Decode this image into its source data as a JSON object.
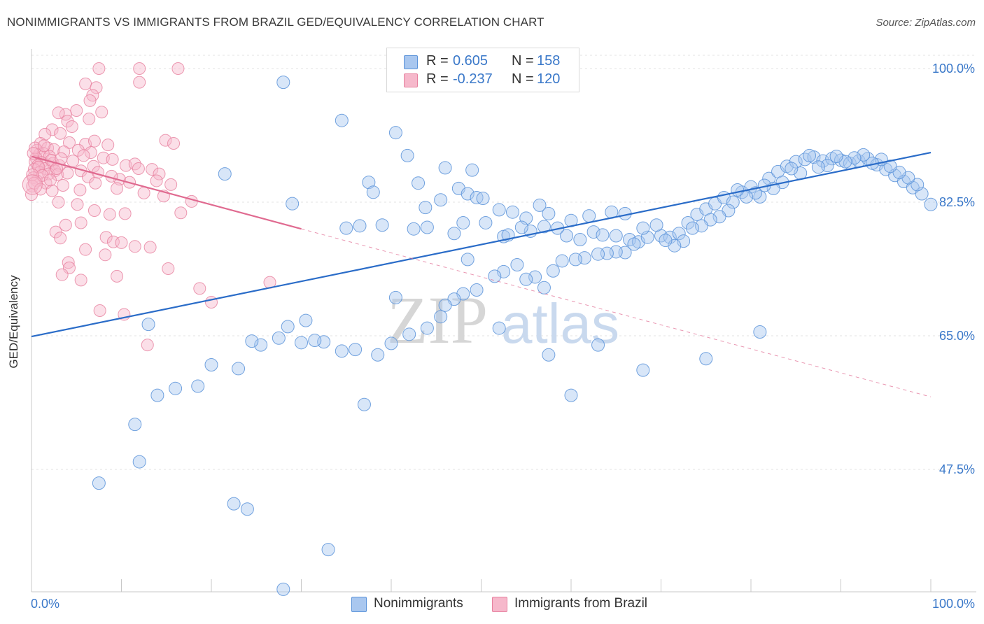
{
  "header": {
    "title": "NONIMMIGRANTS VS IMMIGRANTS FROM BRAZIL GED/EQUIVALENCY CORRELATION CHART",
    "source": "Source: ZipAtlas.com"
  },
  "colors": {
    "blue_fill": "#a9c7ef",
    "blue_stroke": "#5b93d9",
    "blue_line": "#2a6cc8",
    "pink_fill": "#f6b8cb",
    "pink_stroke": "#e7819f",
    "pink_line": "#e06a90",
    "axis_label": "#3a78c9",
    "grid": "#e3e3e3"
  },
  "legend": {
    "rows": [
      {
        "r_label": "R =",
        "r_value": "0.605",
        "n_label": "N =",
        "n_value": "158"
      },
      {
        "r_label": "R =",
        "r_value": "-0.237",
        "n_label": "N =",
        "n_value": "120"
      }
    ]
  },
  "bottom_legend": {
    "items": [
      {
        "label": "Nonimmigrants"
      },
      {
        "label": "Immigrants from Brazil"
      }
    ]
  },
  "watermark": {
    "zip": "ZIP",
    "atlas": "atlas"
  },
  "chart_data": {
    "type": "scatter",
    "title": "NONIMMIGRANTS VS IMMIGRANTS FROM BRAZIL GED/EQUIVALENCY CORRELATION CHART",
    "xlabel": "",
    "ylabel": "GED/Equivalency",
    "xlim": [
      0,
      100
    ],
    "ylim": [
      29,
      100
    ],
    "x_tick_labels": [
      "0.0%",
      "100.0%"
    ],
    "y_ticks": [
      {
        "value": 100.0,
        "label": "100.0%"
      },
      {
        "value": 82.5,
        "label": "82.5%"
      },
      {
        "value": 65.0,
        "label": "65.0%"
      },
      {
        "value": 47.5,
        "label": "47.5%"
      }
    ],
    "grid": true,
    "legend_position": "top-center",
    "series": [
      {
        "name": "Nonimmigrants",
        "r": 0.605,
        "n": 158,
        "trend": {
          "x": [
            0,
            100
          ],
          "y": [
            64.9,
            89.0
          ],
          "style": "solid"
        },
        "points": [
          [
            28.0,
            98.2
          ],
          [
            34.5,
            93.2
          ],
          [
            40.5,
            91.6
          ],
          [
            41.8,
            88.6
          ],
          [
            46.0,
            87.0
          ],
          [
            49.0,
            86.7
          ],
          [
            47.5,
            84.3
          ],
          [
            37.5,
            85.1
          ],
          [
            43.0,
            85.0
          ],
          [
            38.0,
            83.8
          ],
          [
            29.0,
            82.3
          ],
          [
            21.5,
            86.2
          ],
          [
            48.5,
            83.6
          ],
          [
            45.5,
            82.8
          ],
          [
            49.5,
            83.1
          ],
          [
            43.8,
            81.8
          ],
          [
            50.2,
            83.0
          ],
          [
            52.0,
            81.5
          ],
          [
            53.5,
            81.2
          ],
          [
            56.5,
            82.1
          ],
          [
            57.5,
            81.0
          ],
          [
            62.0,
            80.7
          ],
          [
            64.5,
            81.2
          ],
          [
            66.0,
            81.0
          ],
          [
            60.0,
            80.1
          ],
          [
            55.0,
            80.4
          ],
          [
            48.0,
            79.8
          ],
          [
            42.5,
            79.0
          ],
          [
            44.0,
            79.2
          ],
          [
            39.0,
            79.5
          ],
          [
            36.5,
            79.4
          ],
          [
            35.0,
            79.1
          ],
          [
            57.0,
            79.3
          ],
          [
            58.5,
            79.1
          ],
          [
            47.0,
            78.4
          ],
          [
            55.5,
            78.7
          ],
          [
            50.5,
            79.8
          ],
          [
            52.5,
            78.0
          ],
          [
            53.0,
            78.2
          ],
          [
            54.5,
            79.2
          ],
          [
            59.5,
            78.1
          ],
          [
            61.0,
            77.6
          ],
          [
            62.5,
            78.6
          ],
          [
            63.5,
            78.2
          ],
          [
            65.0,
            78.1
          ],
          [
            66.5,
            77.6
          ],
          [
            67.5,
            77.3
          ],
          [
            68.5,
            77.9
          ],
          [
            70.0,
            78.1
          ],
          [
            71.0,
            77.9
          ],
          [
            72.0,
            78.4
          ],
          [
            73.0,
            79.8
          ],
          [
            74.0,
            80.9
          ],
          [
            75.0,
            81.6
          ],
          [
            76.0,
            82.3
          ],
          [
            77.0,
            83.1
          ],
          [
            78.0,
            82.5
          ],
          [
            79.0,
            83.8
          ],
          [
            80.0,
            84.5
          ],
          [
            81.0,
            83.2
          ],
          [
            82.0,
            85.6
          ],
          [
            83.0,
            86.5
          ],
          [
            84.0,
            87.2
          ],
          [
            85.0,
            87.8
          ],
          [
            86.0,
            88.1
          ],
          [
            87.0,
            88.4
          ],
          [
            88.0,
            87.9
          ],
          [
            89.0,
            88.2
          ],
          [
            90.0,
            88.0
          ],
          [
            91.0,
            87.6
          ],
          [
            92.0,
            87.9
          ],
          [
            93.0,
            88.2
          ],
          [
            94.0,
            87.4
          ],
          [
            95.0,
            86.8
          ],
          [
            96.0,
            86.0
          ],
          [
            97.0,
            85.2
          ],
          [
            98.0,
            84.4
          ],
          [
            99.0,
            83.6
          ],
          [
            100.0,
            82.2
          ],
          [
            98.5,
            84.8
          ],
          [
            97.5,
            85.7
          ],
          [
            96.5,
            86.4
          ],
          [
            95.5,
            87.2
          ],
          [
            94.5,
            88.1
          ],
          [
            93.5,
            87.6
          ],
          [
            92.5,
            88.7
          ],
          [
            91.5,
            88.3
          ],
          [
            90.5,
            87.8
          ],
          [
            89.5,
            88.5
          ],
          [
            88.5,
            87.3
          ],
          [
            87.5,
            87.1
          ],
          [
            86.5,
            88.6
          ],
          [
            85.5,
            86.3
          ],
          [
            84.5,
            86.9
          ],
          [
            83.5,
            85.1
          ],
          [
            82.5,
            84.3
          ],
          [
            81.5,
            84.7
          ],
          [
            80.5,
            83.7
          ],
          [
            79.5,
            83.2
          ],
          [
            78.5,
            84.1
          ],
          [
            77.5,
            81.4
          ],
          [
            76.5,
            80.6
          ],
          [
            75.5,
            80.2
          ],
          [
            74.5,
            79.4
          ],
          [
            73.5,
            79.1
          ],
          [
            72.5,
            77.4
          ],
          [
            71.5,
            76.8
          ],
          [
            70.5,
            77.5
          ],
          [
            69.5,
            79.5
          ],
          [
            68.0,
            79.1
          ],
          [
            67.0,
            77.0
          ],
          [
            66.0,
            75.9
          ],
          [
            65.0,
            76.0
          ],
          [
            64.0,
            75.8
          ],
          [
            63.0,
            75.7
          ],
          [
            61.5,
            75.2
          ],
          [
            60.5,
            75.0
          ],
          [
            59.0,
            74.8
          ],
          [
            58.0,
            73.5
          ],
          [
            57.0,
            71.3
          ],
          [
            56.0,
            72.7
          ],
          [
            55.0,
            72.4
          ],
          [
            54.0,
            74.3
          ],
          [
            52.5,
            73.4
          ],
          [
            51.5,
            72.8
          ],
          [
            49.5,
            71.0
          ],
          [
            48.0,
            70.5
          ],
          [
            47.0,
            69.8
          ],
          [
            46.0,
            69.0
          ],
          [
            45.5,
            67.5
          ],
          [
            44.0,
            66.0
          ],
          [
            42.0,
            65.2
          ],
          [
            40.0,
            64.0
          ],
          [
            38.5,
            62.5
          ],
          [
            36.0,
            63.2
          ],
          [
            34.5,
            63.0
          ],
          [
            32.5,
            64.2
          ],
          [
            31.5,
            64.4
          ],
          [
            30.0,
            64.1
          ],
          [
            28.5,
            66.2
          ],
          [
            27.5,
            64.7
          ],
          [
            25.5,
            63.8
          ],
          [
            24.5,
            64.3
          ],
          [
            23.0,
            60.7
          ],
          [
            20.0,
            61.2
          ],
          [
            18.5,
            58.4
          ],
          [
            16.0,
            58.1
          ],
          [
            14.0,
            57.2
          ],
          [
            11.5,
            53.4
          ],
          [
            7.5,
            45.7
          ],
          [
            12.0,
            48.5
          ],
          [
            22.5,
            43.0
          ],
          [
            24.0,
            42.3
          ],
          [
            33.0,
            37.0
          ],
          [
            28.0,
            31.8
          ],
          [
            23.5,
            24.8
          ],
          [
            63.0,
            63.8
          ],
          [
            57.5,
            62.5
          ],
          [
            37.0,
            56.0
          ],
          [
            60.0,
            57.2
          ],
          [
            75.0,
            62.0
          ],
          [
            81.0,
            65.5
          ],
          [
            30.5,
            67.0
          ],
          [
            13.0,
            66.5
          ],
          [
            68.0,
            60.5
          ],
          [
            52.0,
            66.0
          ],
          [
            40.5,
            70.0
          ],
          [
            48.5,
            75.0
          ]
        ]
      },
      {
        "name": "Immigrants from Brazil",
        "r": -0.237,
        "n": 120,
        "trend": {
          "x": [
            0,
            30
          ],
          "y": [
            88.5,
            79.0
          ],
          "style": "solid",
          "extension": {
            "x": [
              30,
              100
            ],
            "y": [
              79.0,
              57.0
            ],
            "style": "dashed"
          }
        },
        "points": [
          [
            7.5,
            100.0
          ],
          [
            12.0,
            100.0
          ],
          [
            16.3,
            100.0
          ],
          [
            12.0,
            98.2
          ],
          [
            6.0,
            98.0
          ],
          [
            7.2,
            97.5
          ],
          [
            6.8,
            96.5
          ],
          [
            6.5,
            95.8
          ],
          [
            5.0,
            94.5
          ],
          [
            7.8,
            94.3
          ],
          [
            3.8,
            94.0
          ],
          [
            3.0,
            94.2
          ],
          [
            4.0,
            93.1
          ],
          [
            6.4,
            93.4
          ],
          [
            4.5,
            92.4
          ],
          [
            2.3,
            92.0
          ],
          [
            1.5,
            91.4
          ],
          [
            3.2,
            91.5
          ],
          [
            4.2,
            90.3
          ],
          [
            6.0,
            90.1
          ],
          [
            7.0,
            90.5
          ],
          [
            8.5,
            90.0
          ],
          [
            14.9,
            90.6
          ],
          [
            15.8,
            90.2
          ],
          [
            1.0,
            90.2
          ],
          [
            1.8,
            89.6
          ],
          [
            2.5,
            89.4
          ],
          [
            3.6,
            89.1
          ],
          [
            5.2,
            89.3
          ],
          [
            6.6,
            89.0
          ],
          [
            0.6,
            89.3
          ],
          [
            0.9,
            88.8
          ],
          [
            1.3,
            88.9
          ],
          [
            2.0,
            88.5
          ],
          [
            0.5,
            88.3
          ],
          [
            0.4,
            87.8
          ],
          [
            1.1,
            87.7
          ],
          [
            1.7,
            87.4
          ],
          [
            2.4,
            87.6
          ],
          [
            3.1,
            87.3
          ],
          [
            0.7,
            87.3
          ],
          [
            1.5,
            86.9
          ],
          [
            2.6,
            86.6
          ],
          [
            0.3,
            86.8
          ],
          [
            0.9,
            86.4
          ],
          [
            1.9,
            86.2
          ],
          [
            2.9,
            86.1
          ],
          [
            4.0,
            86.3
          ],
          [
            5.5,
            86.6
          ],
          [
            6.3,
            85.8
          ],
          [
            0.2,
            85.7
          ],
          [
            0.6,
            85.3
          ],
          [
            1.6,
            85.0
          ],
          [
            3.5,
            84.7
          ],
          [
            8.0,
            88.3
          ],
          [
            9.0,
            88.1
          ],
          [
            10.5,
            87.3
          ],
          [
            11.5,
            87.5
          ],
          [
            13.4,
            86.8
          ],
          [
            14.2,
            86.2
          ],
          [
            9.8,
            85.5
          ],
          [
            7.1,
            85.0
          ],
          [
            5.4,
            84.1
          ],
          [
            2.3,
            84.0
          ],
          [
            0.1,
            84.6
          ],
          [
            0.0,
            83.5
          ],
          [
            12.5,
            83.7
          ],
          [
            14.7,
            83.3
          ],
          [
            17.8,
            82.6
          ],
          [
            3.0,
            82.5
          ],
          [
            5.1,
            82.2
          ],
          [
            7.0,
            81.4
          ],
          [
            8.7,
            80.9
          ],
          [
            10.4,
            81.0
          ],
          [
            16.6,
            81.1
          ],
          [
            5.5,
            79.8
          ],
          [
            3.8,
            79.5
          ],
          [
            2.7,
            78.6
          ],
          [
            3.2,
            77.8
          ],
          [
            8.3,
            77.9
          ],
          [
            9.1,
            77.3
          ],
          [
            10.0,
            77.2
          ],
          [
            11.5,
            76.7
          ],
          [
            13.2,
            76.6
          ],
          [
            6.0,
            76.3
          ],
          [
            8.2,
            75.6
          ],
          [
            4.1,
            74.6
          ],
          [
            4.2,
            73.9
          ],
          [
            3.4,
            73.0
          ],
          [
            5.5,
            72.3
          ],
          [
            9.5,
            72.8
          ],
          [
            15.2,
            73.8
          ],
          [
            18.7,
            71.2
          ],
          [
            26.5,
            72.0
          ],
          [
            7.6,
            68.3
          ],
          [
            10.3,
            67.8
          ],
          [
            12.9,
            63.8
          ],
          [
            20.0,
            69.4
          ],
          [
            0.4,
            89.6
          ],
          [
            0.8,
            87.1
          ],
          [
            1.2,
            86.0
          ],
          [
            1.4,
            89.9
          ],
          [
            2.2,
            88.0
          ],
          [
            2.8,
            86.9
          ],
          [
            3.3,
            88.2
          ],
          [
            4.6,
            87.9
          ],
          [
            5.8,
            88.6
          ],
          [
            6.9,
            87.2
          ],
          [
            7.4,
            86.4
          ],
          [
            8.9,
            85.9
          ],
          [
            9.5,
            84.3
          ],
          [
            10.9,
            85.1
          ],
          [
            11.9,
            86.9
          ],
          [
            13.9,
            85.3
          ],
          [
            15.5,
            84.8
          ],
          [
            0.1,
            86.1
          ],
          [
            0.3,
            85.0
          ],
          [
            0.2,
            88.9
          ],
          [
            1.0,
            84.2
          ],
          [
            2.1,
            85.4
          ]
        ]
      }
    ]
  }
}
